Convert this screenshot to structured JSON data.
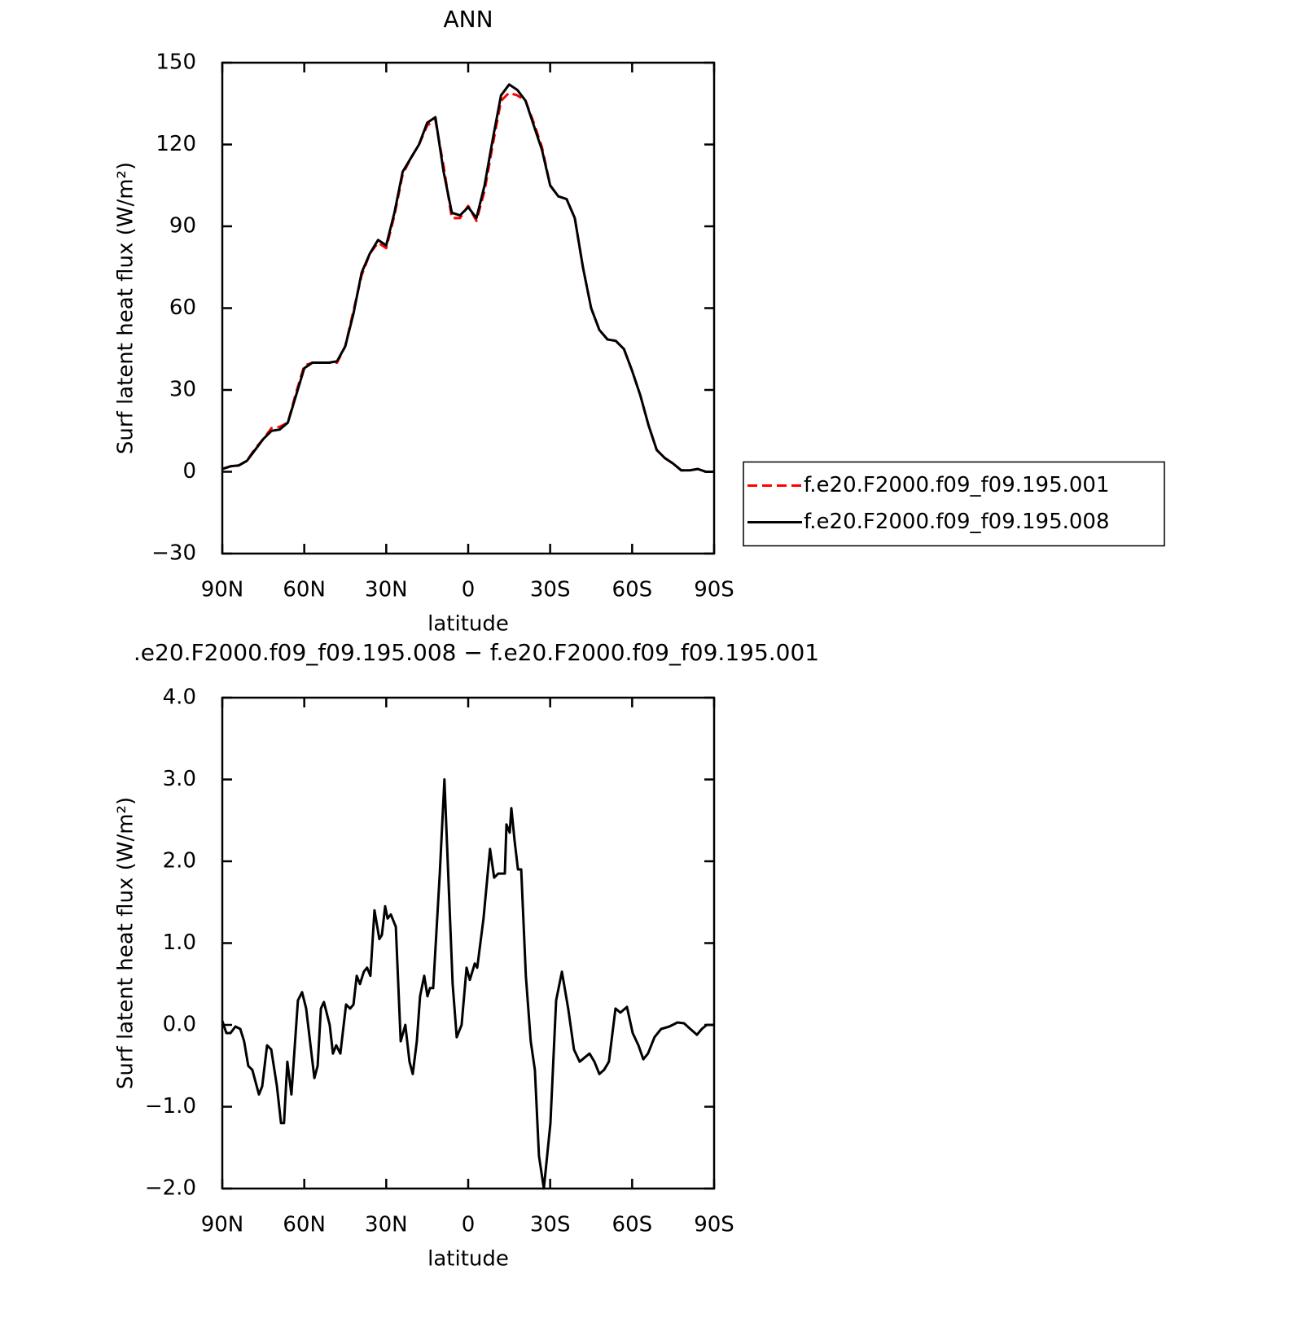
{
  "chart_data": [
    {
      "type": "line",
      "title": "ANN",
      "xlabel": "latitude",
      "ylabel": "Surf latent heat flux (W/m²)",
      "xlim": [
        90,
        -90
      ],
      "ylim": [
        -30,
        150
      ],
      "xticks": [
        {
          "value": 90,
          "label": "90N"
        },
        {
          "value": 60,
          "label": "60N"
        },
        {
          "value": 30,
          "label": "30N"
        },
        0,
        {
          "value": -30,
          "label": "30S"
        },
        {
          "value": -60,
          "label": "60S"
        },
        {
          "value": -90,
          "label": "90S"
        }
      ],
      "yticks": [
        {
          "value": -30,
          "label": "−30"
        },
        0,
        30,
        60,
        90,
        120,
        150
      ],
      "legend": "right",
      "x": [
        90,
        87,
        84,
        81,
        78,
        75,
        72,
        69,
        66,
        63,
        60,
        57,
        54,
        51,
        48,
        45,
        42,
        39,
        36,
        33,
        30,
        27,
        24,
        21,
        18,
        15,
        12,
        9,
        6,
        3,
        0,
        -3,
        -6,
        -9,
        -12,
        -15,
        -18,
        -21,
        -24,
        -27,
        -30,
        -33,
        -36,
        -39,
        -42,
        -45,
        -48,
        -51,
        -54,
        -57,
        -60,
        -63,
        -66,
        -69,
        -72,
        -75,
        -78,
        -81,
        -84,
        -87,
        -90
      ],
      "series": [
        {
          "name": "f.e20.F2000.f09_f09.195.001",
          "color": "#ff0000",
          "dashed": true,
          "values": [
            1,
            2,
            2.3,
            4,
            8.5,
            12,
            16,
            16.5,
            18,
            29,
            39,
            40,
            40,
            40,
            40,
            46,
            59,
            72,
            80,
            84,
            82,
            94,
            109,
            115,
            120,
            127,
            129,
            112,
            93,
            93,
            97.5,
            92,
            103,
            120,
            136,
            139,
            138,
            136,
            128,
            119,
            105,
            101,
            100,
            93,
            75,
            60,
            52,
            48.5,
            48,
            45,
            37,
            28,
            17,
            8,
            5,
            3,
            0.5,
            0.5,
            1,
            0,
            0
          ]
        },
        {
          "name": "f.e20.F2000.f09_f09.195.008",
          "color": "#000000",
          "dashed": false,
          "values": [
            1,
            2,
            2.3,
            4,
            8,
            12,
            15,
            15.5,
            18,
            28,
            38,
            40,
            40,
            40,
            40.5,
            46,
            58,
            73,
            80,
            85,
            83,
            95,
            110,
            115,
            120,
            128,
            130,
            110,
            95,
            94,
            97,
            93,
            105,
            122,
            138,
            142,
            140,
            136,
            127,
            118,
            105,
            101,
            100,
            93,
            75,
            60,
            52,
            48.5,
            48,
            45,
            37,
            28,
            17,
            8,
            5,
            3,
            0.5,
            0.5,
            1,
            0,
            0
          ]
        }
      ]
    },
    {
      "type": "line",
      "title": ".e20.F2000.f09_f09.195.008 − f.e20.F2000.f09_f09.195.001",
      "xlabel": "latitude",
      "ylabel": "Surf latent heat flux (W/m²)",
      "xlim": [
        90,
        -90
      ],
      "ylim": [
        -2,
        4
      ],
      "xticks": [
        {
          "value": 90,
          "label": "90N"
        },
        {
          "value": 60,
          "label": "60N"
        },
        {
          "value": 30,
          "label": "30N"
        },
        0,
        {
          "value": -30,
          "label": "30S"
        },
        {
          "value": -60,
          "label": "60S"
        },
        {
          "value": -90,
          "label": "90S"
        }
      ],
      "yticks": [
        {
          "value": -2,
          "label": "−2.0"
        },
        {
          "value": -1,
          "label": "−1.0"
        },
        {
          "value": 0,
          "label": "0.0"
        },
        {
          "value": 1,
          "label": "1.0"
        },
        {
          "value": 2,
          "label": "2.0"
        },
        {
          "value": 3,
          "label": "3.0"
        },
        {
          "value": 4,
          "label": "4.0"
        }
      ],
      "x": [
        90,
        88.5,
        87,
        85.2,
        83.4,
        82,
        80.5,
        79,
        76.6,
        75.4,
        73.6,
        72.1,
        70,
        68.5,
        67.4,
        66.2,
        64.7,
        62.3,
        60.8,
        59.3,
        56.3,
        55.1,
        53.9,
        52.8,
        50.7,
        49.5,
        48.3,
        46.8,
        44.7,
        43.2,
        42,
        40.8,
        39.6,
        38.2,
        37,
        35.8,
        34.3,
        32.5,
        31.6,
        30.4,
        29.5,
        28.3,
        26.5,
        24.7,
        23,
        21.5,
        20.3,
        18.8,
        17.6,
        16.1,
        14.9,
        14,
        12.8,
        10.4,
        8.7,
        5.7,
        4.2,
        2.4,
        0.6,
        -0.6,
        -2.4,
        -3.3,
        -5.6,
        -8,
        -9.5,
        -11,
        -13.4,
        -14,
        -15.2,
        -15.8,
        -17,
        -18.2,
        -19.4,
        -21.1,
        -22.9,
        -24.4,
        -25.9,
        -27.7,
        -30.1,
        -32.2,
        -34.3,
        -36.6,
        -38.7,
        -40.8,
        -42.6,
        -44.4,
        -46.2,
        -48,
        -49.7,
        -51.5,
        -53.9,
        -55.7,
        -58.1,
        -60.2,
        -62.3,
        -64.1,
        -65.8,
        -68.2,
        -70.6,
        -73.6,
        -76.6,
        -79,
        -81.3,
        -83.7,
        -85.5,
        -87.3,
        -90
      ],
      "series": [
        {
          "color": "#000000",
          "dashed": false,
          "values": [
            0.05,
            -0.1,
            -0.1,
            -0.02,
            -0.05,
            -0.2,
            -0.5,
            -0.55,
            -0.85,
            -0.75,
            -0.25,
            -0.3,
            -0.75,
            -1.2,
            -1.2,
            -0.45,
            -0.85,
            0.3,
            0.4,
            0.2,
            -0.65,
            -0.5,
            0.2,
            0.28,
            0,
            -0.35,
            -0.25,
            -0.35,
            0.25,
            0.2,
            0.25,
            0.6,
            0.5,
            0.65,
            0.7,
            0.6,
            1.4,
            1.05,
            1.1,
            1.45,
            1.3,
            1.35,
            1.2,
            -0.2,
            0,
            -0.45,
            -0.6,
            -0.2,
            0.35,
            0.6,
            0.35,
            0.45,
            0.45,
            1.85,
            3,
            0.5,
            -0.15,
            0,
            0.7,
            0.55,
            0.75,
            0.7,
            1.3,
            2.15,
            1.8,
            1.85,
            1.85,
            2.45,
            2.35,
            2.65,
            2.25,
            1.9,
            1.9,
            0.6,
            -0.2,
            -0.55,
            -1.6,
            -2,
            -1.2,
            0.3,
            0.65,
            0.2,
            -0.3,
            -0.45,
            -0.4,
            -0.35,
            -0.45,
            -0.6,
            -0.55,
            -0.45,
            0.2,
            0.15,
            0.22,
            -0.1,
            -0.25,
            -0.42,
            -0.35,
            -0.15,
            -0.05,
            -0.02,
            0.03,
            0.02,
            -0.05,
            -0.12,
            -0.05,
            0,
            0
          ]
        }
      ]
    }
  ]
}
